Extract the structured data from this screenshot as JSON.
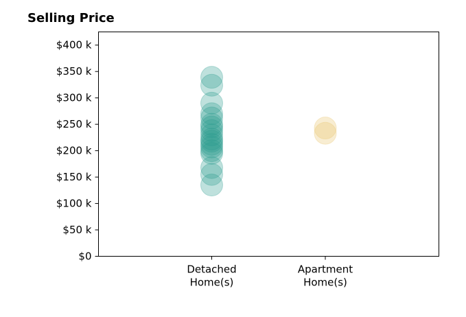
{
  "chart_data": {
    "type": "scatter",
    "title": "Selling Price",
    "xlabel": "",
    "ylabel": "",
    "categories": [
      "Detached\nHome(s)",
      "Apartment\nHome(s)"
    ],
    "ylim": [
      0,
      425000
    ],
    "yticks": [
      0,
      50000,
      100000,
      150000,
      200000,
      250000,
      300000,
      350000,
      400000
    ],
    "ytick_labels": [
      "$0",
      "$50 k",
      "$100 k",
      "$150 k",
      "$200 k",
      "$250 k",
      "$300 k",
      "$350 k",
      "$400 k"
    ],
    "grid": false,
    "series": [
      {
        "category_index": 0,
        "color": "#2a9d8f",
        "values": [
          339000,
          324000,
          290000,
          270000,
          262000,
          250000,
          245000,
          238000,
          230000,
          222000,
          218000,
          212000,
          207000,
          200000,
          195000,
          168000,
          155000,
          135000
        ]
      },
      {
        "category_index": 1,
        "color": "#e9c46a",
        "values": [
          243000,
          233000
        ]
      }
    ]
  }
}
